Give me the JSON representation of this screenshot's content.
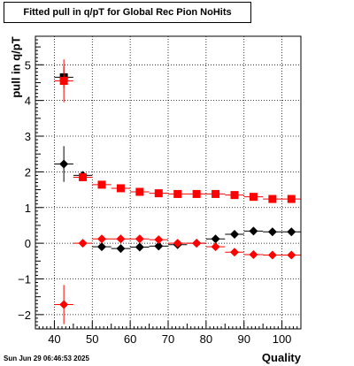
{
  "chart_data": {
    "type": "scatter",
    "title": "Fitted pull in q/pT for Global Rec Pion NoHits",
    "xlabel": "Quality",
    "ylabel": "pull in q/pT",
    "xlim": [
      35,
      105
    ],
    "ylim": [
      -2.4,
      5.8
    ],
    "xticks": [
      40,
      50,
      60,
      70,
      80,
      90,
      100
    ],
    "yticks": [
      -2,
      -1,
      0,
      1,
      2,
      3,
      4,
      5
    ],
    "grid": true,
    "series": [
      {
        "marker": "circle",
        "color": "#000000",
        "points": [
          {
            "x": 42.5,
            "y": 2.22,
            "xerr": 2.5,
            "yerr": 0.5
          },
          {
            "x": 47.5,
            "y": 1.9,
            "xerr": 2.5,
            "yerr": 0.08
          },
          {
            "x": 52.5,
            "y": -0.1,
            "xerr": 2.5,
            "yerr": 0.05
          },
          {
            "x": 57.5,
            "y": -0.15,
            "xerr": 2.5,
            "yerr": 0.04
          },
          {
            "x": 62.5,
            "y": -0.11,
            "xerr": 2.5,
            "yerr": 0.03
          },
          {
            "x": 67.5,
            "y": -0.08,
            "xerr": 2.5,
            "yerr": 0.03
          },
          {
            "x": 72.5,
            "y": -0.04,
            "xerr": 2.5,
            "yerr": 0.03
          },
          {
            "x": 77.5,
            "y": 0.0,
            "xerr": 2.5,
            "yerr": 0.03
          },
          {
            "x": 82.5,
            "y": 0.12,
            "xerr": 2.5,
            "yerr": 0.03
          },
          {
            "x": 87.5,
            "y": 0.25,
            "xerr": 2.5,
            "yerr": 0.03
          },
          {
            "x": 92.5,
            "y": 0.34,
            "xerr": 2.5,
            "yerr": 0.03
          },
          {
            "x": 97.5,
            "y": 0.32,
            "xerr": 2.5,
            "yerr": 0.03
          },
          {
            "x": 102.5,
            "y": 0.32,
            "xerr": 2.5,
            "yerr": 0.03
          }
        ]
      },
      {
        "marker": "square",
        "color": "#000000",
        "points": [
          {
            "x": 42.5,
            "y": 4.65,
            "xerr": 2.5,
            "yerr": 0.3
          }
        ]
      },
      {
        "marker": "square",
        "color": "#ff0000",
        "points": [
          {
            "x": 42.5,
            "y": 4.55,
            "xerr": 2.5,
            "yerr": 0.6
          },
          {
            "x": 47.5,
            "y": 1.85,
            "xerr": 2.5,
            "yerr": 0.08
          },
          {
            "x": 52.5,
            "y": 1.64,
            "xerr": 2.5,
            "yerr": 0.06
          },
          {
            "x": 57.5,
            "y": 1.54,
            "xerr": 2.5,
            "yerr": 0.05
          },
          {
            "x": 62.5,
            "y": 1.44,
            "xerr": 2.5,
            "yerr": 0.04
          },
          {
            "x": 67.5,
            "y": 1.4,
            "xerr": 2.5,
            "yerr": 0.04
          },
          {
            "x": 72.5,
            "y": 1.38,
            "xerr": 2.5,
            "yerr": 0.03
          },
          {
            "x": 77.5,
            "y": 1.38,
            "xerr": 2.5,
            "yerr": 0.03
          },
          {
            "x": 82.5,
            "y": 1.38,
            "xerr": 2.5,
            "yerr": 0.03
          },
          {
            "x": 87.5,
            "y": 1.35,
            "xerr": 2.5,
            "yerr": 0.03
          },
          {
            "x": 92.5,
            "y": 1.3,
            "xerr": 2.5,
            "yerr": 0.03
          },
          {
            "x": 97.5,
            "y": 1.24,
            "xerr": 2.5,
            "yerr": 0.03
          },
          {
            "x": 102.5,
            "y": 1.24,
            "xerr": 2.5,
            "yerr": 0.03
          }
        ]
      },
      {
        "marker": "circle",
        "color": "#ff0000",
        "points": [
          {
            "x": 42.5,
            "y": -1.72,
            "xerr": 2.5,
            "yerr": 0.55
          },
          {
            "x": 47.5,
            "y": 0.0,
            "xerr": 2.5,
            "yerr": 0.05
          },
          {
            "x": 52.5,
            "y": 0.12,
            "xerr": 2.5,
            "yerr": 0.04
          },
          {
            "x": 57.5,
            "y": 0.12,
            "xerr": 2.5,
            "yerr": 0.04
          },
          {
            "x": 62.5,
            "y": 0.12,
            "xerr": 2.5,
            "yerr": 0.03
          },
          {
            "x": 67.5,
            "y": 0.1,
            "xerr": 2.5,
            "yerr": 0.03
          },
          {
            "x": 72.5,
            "y": 0.0,
            "xerr": 2.5,
            "yerr": 0.03
          },
          {
            "x": 77.5,
            "y": 0.0,
            "xerr": 2.5,
            "yerr": 0.03
          },
          {
            "x": 82.5,
            "y": -0.1,
            "xerr": 2.5,
            "yerr": 0.03
          },
          {
            "x": 87.5,
            "y": -0.25,
            "xerr": 2.5,
            "yerr": 0.03
          },
          {
            "x": 92.5,
            "y": -0.32,
            "xerr": 2.5,
            "yerr": 0.03
          },
          {
            "x": 97.5,
            "y": -0.33,
            "xerr": 2.5,
            "yerr": 0.03
          },
          {
            "x": 102.5,
            "y": -0.33,
            "xerr": 2.5,
            "yerr": 0.03
          }
        ]
      }
    ]
  },
  "footer": {
    "timestamp": "Sun Jun 29 06:46:53 2025"
  }
}
